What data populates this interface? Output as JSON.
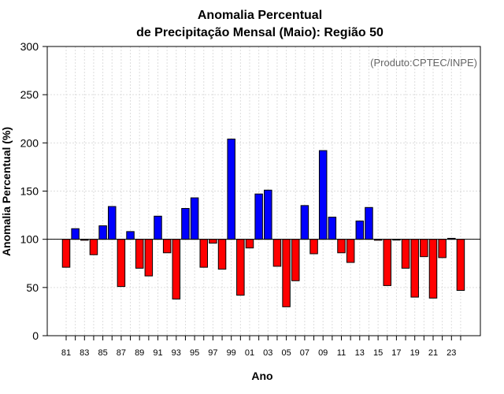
{
  "chart_data": {
    "type": "bar",
    "title_line1": "Anomalia Percentual",
    "title_line2": "de Precipitação Mensal (Maio): Região 50",
    "xlabel": "Ano",
    "ylabel": "Anomalia Percentual (%)",
    "credit": "(Produto:CPTEC/INPE)",
    "baseline": 100,
    "ylim": [
      0,
      300
    ],
    "yticks": [
      0,
      50,
      100,
      150,
      200,
      250,
      300
    ],
    "categories": [
      "81",
      "82",
      "83",
      "84",
      "85",
      "86",
      "87",
      "88",
      "89",
      "90",
      "91",
      "92",
      "93",
      "94",
      "95",
      "96",
      "97",
      "98",
      "99",
      "00",
      "01",
      "02",
      "03",
      "04",
      "05",
      "06",
      "07",
      "08",
      "09",
      "10",
      "11",
      "12",
      "13",
      "14",
      "15",
      "16",
      "17",
      "18",
      "19",
      "20",
      "21",
      "22",
      "23",
      "24"
    ],
    "tick_labels": [
      "81",
      "83",
      "85",
      "87",
      "89",
      "91",
      "93",
      "95",
      "97",
      "99",
      "01",
      "03",
      "05",
      "07",
      "09",
      "11",
      "13",
      "15",
      "17",
      "19",
      "21",
      "23"
    ],
    "values": [
      71,
      111,
      99,
      84,
      114,
      134,
      51,
      108,
      70,
      62,
      124,
      86,
      38,
      132,
      143,
      71,
      96,
      69,
      204,
      42,
      91,
      147,
      151,
      72,
      30,
      57,
      135,
      85,
      192,
      123,
      86,
      76,
      119,
      133,
      99,
      52,
      100,
      70,
      40,
      82,
      39,
      81,
      101,
      47
    ],
    "colors": {
      "above": "#0000ff",
      "below": "#ff0000",
      "grid": "#dddddd",
      "axis": "#000000"
    }
  }
}
